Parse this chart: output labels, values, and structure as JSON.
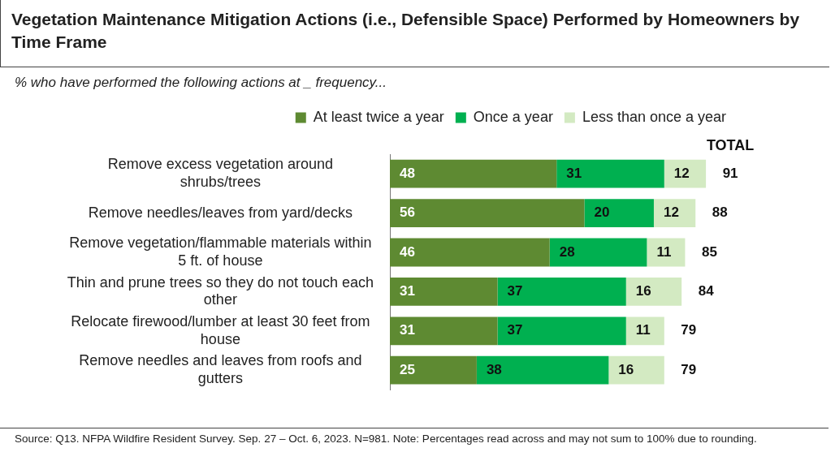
{
  "chart_data": {
    "type": "bar",
    "orientation": "horizontal",
    "stacked": true,
    "title": "Vegetation Maintenance Mitigation Actions (i.e., Defensible Space) Performed by Homeowners by Time Frame",
    "subtitle": "% who have performed the following actions at _ frequency...",
    "categories": [
      "Remove excess vegetation around shrubs/trees",
      "Remove needles/leaves from yard/decks",
      "Remove vegetation/flammable materials within 5 ft. of house",
      "Thin and prune trees so they do not touch each other",
      "Relocate firewood/lumber at least 30 feet from house",
      "Remove needles and leaves from roofs and gutters"
    ],
    "series": [
      {
        "name": "At least twice a year",
        "color": "#5e8a32",
        "values": [
          48,
          56,
          46,
          31,
          31,
          25
        ]
      },
      {
        "name": "Once a year",
        "color": "#00b050",
        "values": [
          31,
          20,
          28,
          37,
          37,
          38
        ]
      },
      {
        "name": "Less than once a year",
        "color": "#d3eac2",
        "values": [
          12,
          12,
          11,
          16,
          11,
          16
        ]
      }
    ],
    "data_labels": true,
    "totals": [
      "91",
      "88",
      "85",
      "84",
      "79",
      "79"
    ],
    "legend": "top",
    "annotations": [
      "TOTAL",
      "Source: Q13. NFPA Wildfire Resident Survey. Sep. 27 – Oct. 6, 2023. N=981. Note: Percentages read across and may not sum to 100% due to rounding."
    ]
  }
}
